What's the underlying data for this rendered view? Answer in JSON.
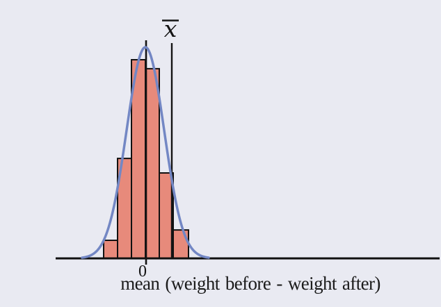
{
  "figure": {
    "description": "Histogram of sampled mean differences with overlaid normal curve, vertical line at 0 and vertical line at the sample mean x-bar",
    "background_color": "#e9eaf2"
  },
  "chart_data": {
    "type": "bar",
    "subtype": "histogram_with_normal_curve_overlay",
    "title": "",
    "x_axis": {
      "label": "mean (weight before - weight after)",
      "tick_labels": [
        "0"
      ],
      "numeric_scale_shown": false
    },
    "y_axis": {
      "visible": false
    },
    "bins": {
      "edges_in_bin_units": [
        -3,
        -2,
        -1,
        0,
        1,
        2,
        3.1
      ],
      "note": "bin units relative to the labeled 0 boundary; no numeric width labeled"
    },
    "bar_heights_normalized_to_peak": [
      0.091,
      0.503,
      1.0,
      0.955,
      0.43,
      0.143
    ],
    "overlay_curve": {
      "shape": "normal-density",
      "mean_bin_units": 0,
      "sigma_bin_units": 1.35,
      "peak_normalized": 1.063,
      "x_range_bin_units": [
        -4.55,
        4.55
      ],
      "color": "#7387c4"
    },
    "reference_lines": {
      "zero": {
        "x_bin_units": 0.05,
        "tick_label": "0"
      },
      "xbar": {
        "x_bin_units": 1.9,
        "label_glyph": "x",
        "label_unicode": "x̄",
        "label_meaning": "sample mean (x with overline)"
      }
    },
    "legend": {
      "visible": false
    },
    "grid": false,
    "colors": {
      "background": "#e9eaf2",
      "bar_fill": "#e78a7b",
      "bar_stroke": "#111111",
      "curve": "#7387c4",
      "axis": "#111111",
      "ink": "#141414"
    }
  }
}
